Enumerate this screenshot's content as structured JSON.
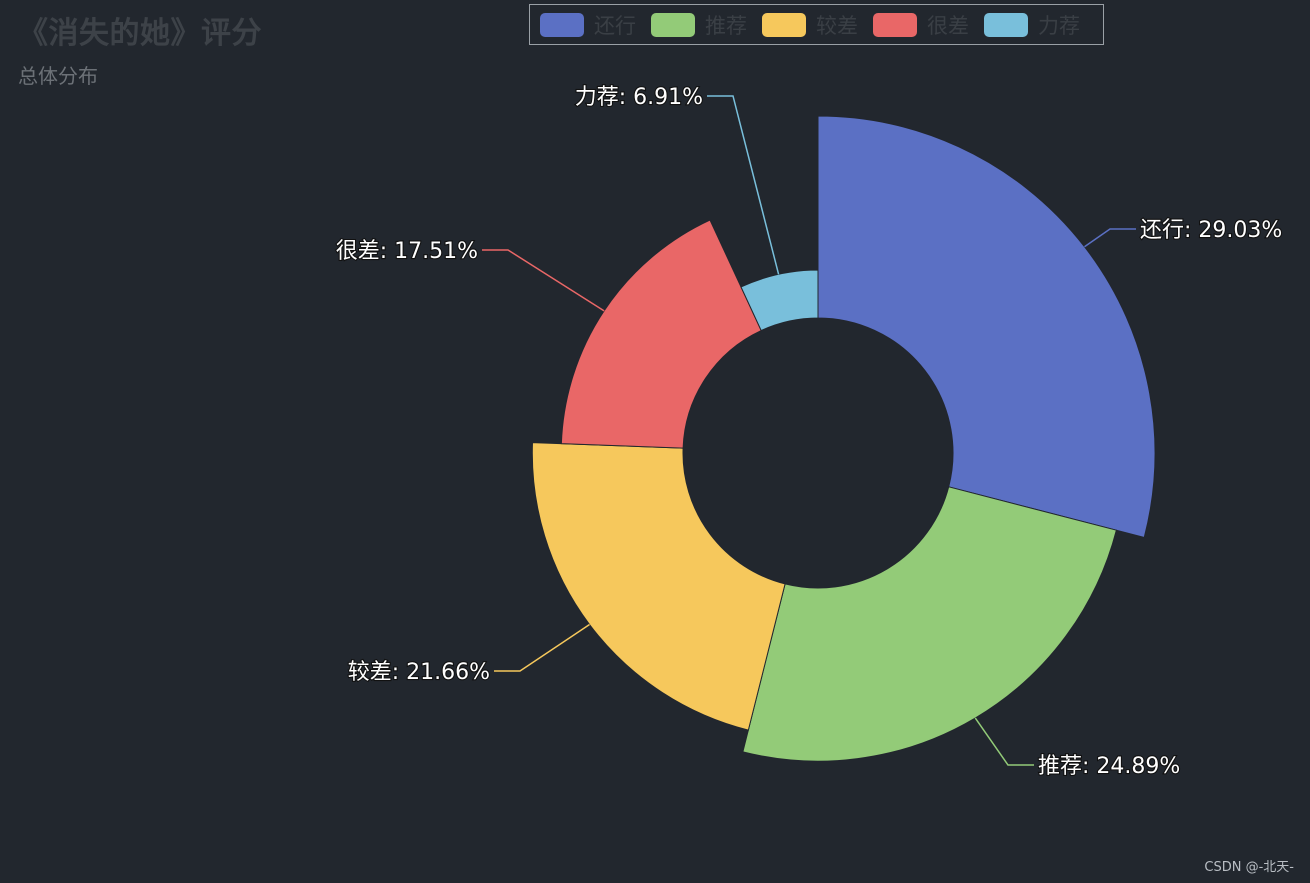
{
  "chart_data": {
    "type": "pie",
    "title": "《消失的她》评分",
    "subtitle": "总体分布",
    "rose": "radius",
    "categories": [
      "还行",
      "推荐",
      "较差",
      "很差",
      "力荐"
    ],
    "values": [
      29.03,
      24.89,
      21.66,
      17.51,
      6.91
    ],
    "unit": "%",
    "labels": [
      "还行: 29.03%",
      "推荐: 24.89%",
      "较差: 21.66%",
      "很差: 17.51%",
      "力荐: 6.91%"
    ],
    "colors": [
      "#5b70c4",
      "#93cb78",
      "#f6c85c",
      "#e96767",
      "#79bfdb"
    ],
    "legend_position": "top-center"
  },
  "watermark": "CSDN @-北天-"
}
